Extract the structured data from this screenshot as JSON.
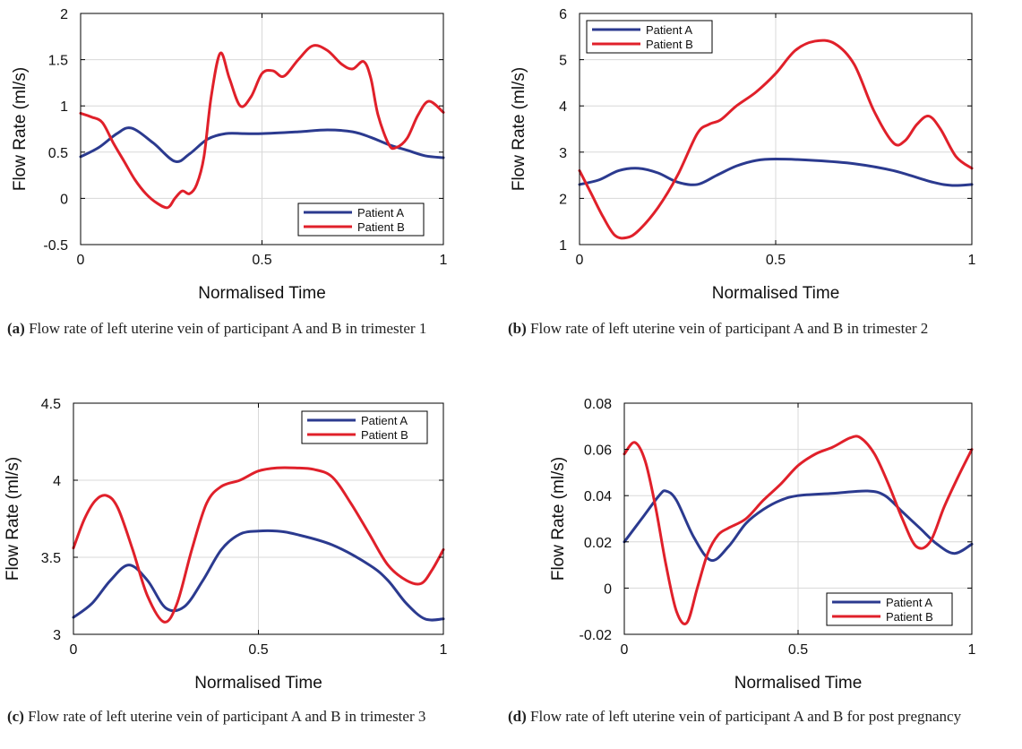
{
  "colors": {
    "series_a": "#2b3a8f",
    "series_b": "#e0202a",
    "grid": "#d8d8d8",
    "axis": "#000000"
  },
  "chart_data": [
    {
      "type": "line",
      "caption_label": "(a)",
      "caption_text": "Flow rate of left uterine vein of participant A and B in trimester 1",
      "xlabel": "Normalised Time",
      "ylabel": "Flow Rate (ml/s)",
      "xlim": [
        0,
        1
      ],
      "ylim": [
        -0.5,
        2
      ],
      "xticks": [
        0,
        0.5,
        1
      ],
      "xtick_labels": [
        "0",
        "0.5",
        "1"
      ],
      "yticks": [
        -0.5,
        0,
        0.5,
        1,
        1.5,
        2
      ],
      "ytick_labels": [
        "-0.5",
        "0",
        "0.5",
        "1",
        "1.5",
        "2"
      ],
      "grid": true,
      "legend_position": "bottom-right",
      "series": [
        {
          "name": "Patient A",
          "x": [
            0,
            0.05,
            0.1,
            0.14,
            0.2,
            0.26,
            0.3,
            0.35,
            0.4,
            0.45,
            0.5,
            0.6,
            0.68,
            0.75,
            0.8,
            0.85,
            0.9,
            0.95,
            1
          ],
          "y": [
            0.45,
            0.55,
            0.7,
            0.76,
            0.6,
            0.4,
            0.48,
            0.64,
            0.7,
            0.7,
            0.7,
            0.72,
            0.74,
            0.72,
            0.66,
            0.58,
            0.52,
            0.46,
            0.44
          ]
        },
        {
          "name": "Patient B",
          "x": [
            0,
            0.03,
            0.06,
            0.09,
            0.12,
            0.15,
            0.18,
            0.21,
            0.24,
            0.26,
            0.28,
            0.3,
            0.32,
            0.34,
            0.36,
            0.385,
            0.41,
            0.44,
            0.47,
            0.5,
            0.53,
            0.56,
            0.6,
            0.64,
            0.68,
            0.72,
            0.75,
            0.78,
            0.8,
            0.82,
            0.85,
            0.87,
            0.9,
            0.93,
            0.96,
            1
          ],
          "y": [
            0.92,
            0.88,
            0.82,
            0.6,
            0.4,
            0.2,
            0.05,
            -0.05,
            -0.1,
            0.0,
            0.08,
            0.05,
            0.15,
            0.45,
            1.1,
            1.57,
            1.3,
            1.0,
            1.1,
            1.35,
            1.38,
            1.32,
            1.5,
            1.65,
            1.6,
            1.45,
            1.4,
            1.48,
            1.3,
            0.9,
            0.58,
            0.55,
            0.65,
            0.9,
            1.05,
            0.93
          ]
        }
      ]
    },
    {
      "type": "line",
      "caption_label": "(b)",
      "caption_text": "Flow rate of left uterine vein of participant A and B in trimester 2",
      "xlabel": "Normalised Time",
      "ylabel": "Flow Rate (ml/s)",
      "xlim": [
        0,
        1
      ],
      "ylim": [
        1,
        6
      ],
      "xticks": [
        0,
        0.5,
        1
      ],
      "xtick_labels": [
        "0",
        "0.5",
        "1"
      ],
      "yticks": [
        1,
        2,
        3,
        4,
        5,
        6
      ],
      "ytick_labels": [
        "1",
        "2",
        "3",
        "4",
        "5",
        "6"
      ],
      "grid": true,
      "legend_position": "top-left",
      "series": [
        {
          "name": "Patient A",
          "x": [
            0,
            0.05,
            0.1,
            0.15,
            0.2,
            0.25,
            0.3,
            0.35,
            0.4,
            0.45,
            0.5,
            0.6,
            0.7,
            0.8,
            0.9,
            0.95,
            1
          ],
          "y": [
            2.3,
            2.4,
            2.6,
            2.65,
            2.55,
            2.35,
            2.3,
            2.5,
            2.7,
            2.82,
            2.85,
            2.82,
            2.75,
            2.6,
            2.35,
            2.28,
            2.3
          ]
        },
        {
          "name": "Patient B",
          "x": [
            0,
            0.03,
            0.06,
            0.09,
            0.12,
            0.15,
            0.2,
            0.25,
            0.3,
            0.33,
            0.36,
            0.4,
            0.45,
            0.5,
            0.55,
            0.6,
            0.65,
            0.7,
            0.75,
            0.8,
            0.83,
            0.86,
            0.89,
            0.92,
            0.96,
            1
          ],
          "y": [
            2.6,
            2.1,
            1.6,
            1.2,
            1.15,
            1.3,
            1.8,
            2.5,
            3.4,
            3.6,
            3.7,
            4.0,
            4.3,
            4.7,
            5.2,
            5.4,
            5.35,
            4.9,
            3.9,
            3.2,
            3.25,
            3.6,
            3.78,
            3.5,
            2.9,
            2.65
          ]
        }
      ]
    },
    {
      "type": "line",
      "caption_label": "(c)",
      "caption_text": "Flow rate of left uterine vein of participant A and B in trimester 3",
      "xlabel": "Normalised Time",
      "ylabel": "Flow Rate (ml/s)",
      "xlim": [
        0,
        1
      ],
      "ylim": [
        3,
        4.5
      ],
      "xticks": [
        0,
        0.5,
        1
      ],
      "xtick_labels": [
        "0",
        "0.5",
        "1"
      ],
      "yticks": [
        3,
        3.5,
        4,
        4.5
      ],
      "ytick_labels": [
        "3",
        "3.5",
        "4",
        "4.5"
      ],
      "grid": true,
      "legend_position": "top-right",
      "series": [
        {
          "name": "Patient A",
          "x": [
            0,
            0.05,
            0.1,
            0.15,
            0.2,
            0.25,
            0.3,
            0.35,
            0.4,
            0.45,
            0.5,
            0.55,
            0.6,
            0.7,
            0.8,
            0.85,
            0.9,
            0.95,
            1
          ],
          "y": [
            3.11,
            3.2,
            3.35,
            3.45,
            3.35,
            3.17,
            3.18,
            3.35,
            3.55,
            3.65,
            3.67,
            3.67,
            3.65,
            3.58,
            3.45,
            3.35,
            3.2,
            3.1,
            3.1
          ]
        },
        {
          "name": "Patient B",
          "x": [
            0,
            0.03,
            0.06,
            0.09,
            0.12,
            0.16,
            0.2,
            0.245,
            0.28,
            0.32,
            0.36,
            0.4,
            0.45,
            0.5,
            0.55,
            0.6,
            0.65,
            0.7,
            0.75,
            0.8,
            0.85,
            0.9,
            0.94,
            0.97,
            1
          ],
          "y": [
            3.56,
            3.75,
            3.87,
            3.9,
            3.82,
            3.55,
            3.25,
            3.08,
            3.2,
            3.55,
            3.85,
            3.96,
            4.0,
            4.06,
            4.08,
            4.08,
            4.07,
            4.02,
            3.85,
            3.65,
            3.45,
            3.35,
            3.33,
            3.42,
            3.55
          ]
        }
      ]
    },
    {
      "type": "line",
      "caption_label": "(d)",
      "caption_text": "Flow rate of left uterine vein of participant A and B for post pregnancy",
      "xlabel": "Normalised Time",
      "ylabel": "Flow Rate (ml/s)",
      "xlim": [
        0,
        1
      ],
      "ylim": [
        -0.02,
        0.08
      ],
      "xticks": [
        0,
        0.5,
        1
      ],
      "xtick_labels": [
        "0",
        "0.5",
        "1"
      ],
      "yticks": [
        -0.02,
        0,
        0.02,
        0.04,
        0.06,
        0.08
      ],
      "ytick_labels": [
        "-0.02",
        "0",
        "0.02",
        "0.04",
        "0.06",
        "0.08"
      ],
      "grid": true,
      "legend_position": "bottom-right",
      "series": [
        {
          "name": "Patient A",
          "x": [
            0,
            0.05,
            0.1,
            0.12,
            0.15,
            0.2,
            0.25,
            0.3,
            0.35,
            0.4,
            0.45,
            0.5,
            0.6,
            0.7,
            0.75,
            0.8,
            0.85,
            0.9,
            0.95,
            1
          ],
          "y": [
            0.02,
            0.03,
            0.04,
            0.042,
            0.038,
            0.022,
            0.012,
            0.018,
            0.028,
            0.034,
            0.038,
            0.04,
            0.041,
            0.042,
            0.04,
            0.033,
            0.026,
            0.019,
            0.015,
            0.019
          ]
        },
        {
          "name": "Patient B",
          "x": [
            0,
            0.03,
            0.06,
            0.09,
            0.12,
            0.15,
            0.18,
            0.21,
            0.24,
            0.27,
            0.3,
            0.35,
            0.4,
            0.45,
            0.5,
            0.55,
            0.6,
            0.65,
            0.68,
            0.72,
            0.76,
            0.8,
            0.84,
            0.88,
            0.92,
            0.96,
            1
          ],
          "y": [
            0.058,
            0.063,
            0.055,
            0.035,
            0.01,
            -0.01,
            -0.015,
            0.0,
            0.015,
            0.023,
            0.026,
            0.03,
            0.038,
            0.045,
            0.053,
            0.058,
            0.061,
            0.065,
            0.065,
            0.058,
            0.045,
            0.03,
            0.018,
            0.02,
            0.035,
            0.048,
            0.06
          ]
        }
      ]
    }
  ]
}
